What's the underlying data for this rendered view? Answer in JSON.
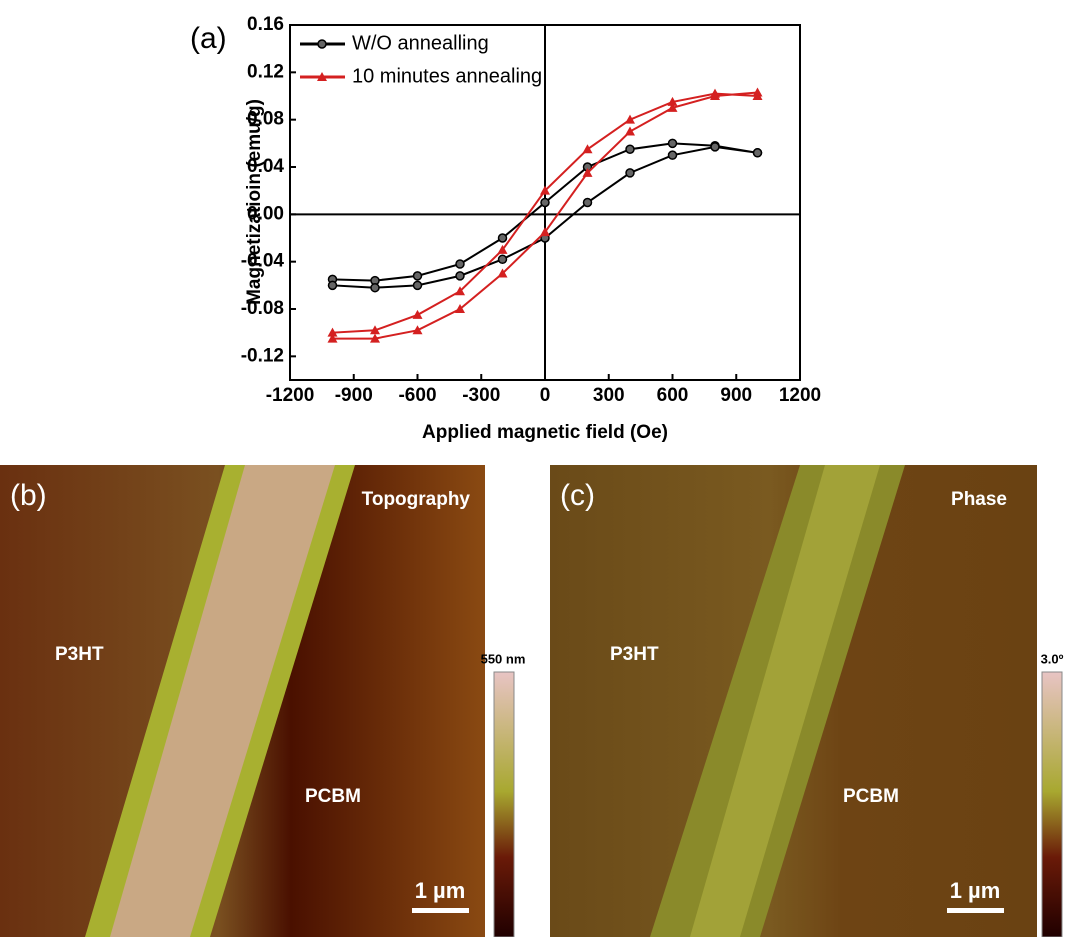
{
  "chart_data": {
    "type": "line",
    "panel_label": "(a)",
    "x_label": "Applied magnetic field (Oe)",
    "y_label": "Magnetizatioin (emu/g)",
    "x": [
      1000,
      800,
      600,
      400,
      200,
      0,
      -200,
      -400,
      -600,
      -800,
      -1000,
      -1000,
      -800,
      -600,
      -400,
      -200,
      0,
      200,
      400,
      600,
      800,
      1000
    ],
    "series": [
      {
        "name": "W/O annealling",
        "color": "#000000",
        "marker": "circle",
        "values": [
          0.052,
          0.058,
          0.06,
          0.055,
          0.04,
          0.01,
          -0.02,
          -0.042,
          -0.052,
          -0.056,
          -0.055,
          -0.06,
          -0.062,
          -0.06,
          -0.052,
          -0.038,
          -0.02,
          0.01,
          0.035,
          0.05,
          0.057,
          0.052
        ]
      },
      {
        "name": "10 minutes annealing",
        "color": "#d42020",
        "marker": "triangle",
        "values": [
          0.1,
          0.102,
          0.095,
          0.08,
          0.055,
          0.02,
          -0.03,
          -0.065,
          -0.085,
          -0.098,
          -0.1,
          -0.105,
          -0.105,
          -0.098,
          -0.08,
          -0.05,
          -0.015,
          0.035,
          0.07,
          0.09,
          0.1,
          0.103
        ]
      }
    ],
    "xlim": [
      -1200,
      1200
    ],
    "xticks": [
      -1200,
      -900,
      -600,
      -300,
      0,
      300,
      600,
      900,
      1200
    ],
    "ylim": [
      -0.14,
      0.16
    ],
    "yticks": [
      -0.12,
      -0.08,
      -0.04,
      {
        "value": 0,
        "label": "0.00"
      },
      0.04,
      0.08,
      0.12,
      0.16
    ],
    "legend": "upper left"
  },
  "panels": [
    {
      "label": "(b)",
      "title": "Topography",
      "regions": [
        "P3HT",
        "PCBM"
      ],
      "scale_bar": "1 µm",
      "colorbar_max": "550 nm"
    },
    {
      "label": "(c)",
      "title": "Phase",
      "regions": [
        "P3HT",
        "PCBM"
      ],
      "scale_bar": "1 µm",
      "colorbar_max": "3.0º"
    }
  ]
}
